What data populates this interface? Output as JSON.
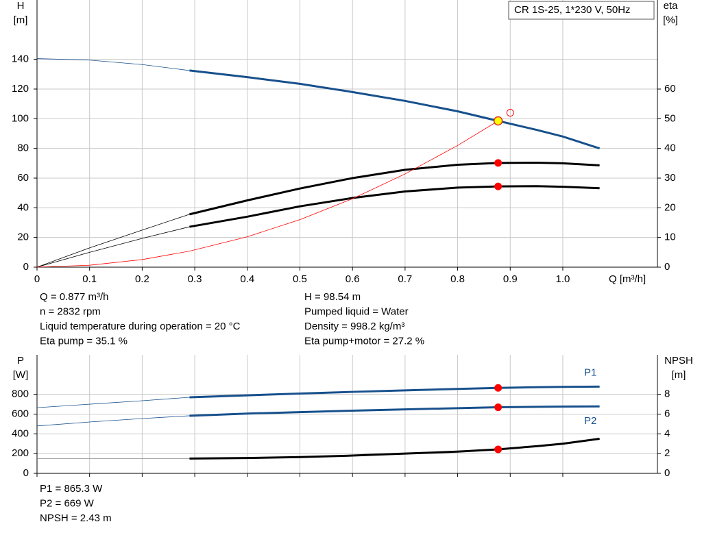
{
  "chart_data": [
    {
      "type": "line",
      "legend_box": "CR 1S-25, 1*230 V, 50Hz",
      "y_label": [
        "H",
        "[m]"
      ],
      "y2_label": [
        "eta",
        "[%]"
      ],
      "x_label": "Q [m³/h]",
      "x": [
        0,
        0.1,
        0.2,
        0.29,
        0.4,
        0.5,
        0.6,
        0.7,
        0.8,
        0.877,
        0.95,
        1.0,
        1.07
      ],
      "xlim": [
        0,
        1.18
      ],
      "xticks": [
        0,
        0.1,
        0.2,
        0.3,
        0.4,
        0.5,
        0.6,
        0.7,
        0.8,
        0.9,
        {
          "value": 1,
          "label": "1.0"
        }
      ],
      "ylim": [
        0,
        180
      ],
      "yticks": [
        0,
        20,
        40,
        60,
        80,
        100,
        120,
        140
      ],
      "y2lim": [
        0,
        90
      ],
      "y2ticks": [
        0,
        10,
        20,
        30,
        40,
        50,
        60
      ],
      "grid": true,
      "thick_from_index": 3,
      "marker_index": 9,
      "series": [
        {
          "color": "#17508c",
          "marker": "#ffff00",
          "values": [
            140.5,
            139.5,
            136.5,
            132.5,
            128,
            123.5,
            118,
            112,
            105,
            98.54,
            92.5,
            88,
            80
          ]
        },
        {
          "color": "#000000",
          "marker": "#ff0000",
          "axis": "y2",
          "values": [
            0,
            6.5,
            12.5,
            17.8,
            22.5,
            26.5,
            30,
            32.8,
            34.5,
            35.1,
            35.2,
            35,
            34.3
          ]
        },
        {
          "color": "#000000",
          "marker": "#ff0000",
          "axis": "y2",
          "values": [
            0,
            5,
            9.7,
            13.6,
            17,
            20.5,
            23.3,
            25.5,
            26.8,
            27.2,
            27.3,
            27.1,
            26.6
          ]
        },
        {
          "color": "#ff0000",
          "thin": true,
          "values": [
            0,
            1.3,
            5.1,
            10.8,
            20.5,
            32,
            46.1,
            62.8,
            82,
            98.54,
            null,
            null,
            null
          ]
        }
      ],
      "annotation_point": {
        "x": 0.9,
        "y": 104
      },
      "info": [
        [
          "Q = 0.877 m³/h",
          "n = 2832 rpm",
          "Liquid temperature during operation = 20 °C",
          "Eta pump = 35.1 %"
        ],
        [
          "H = 98.54 m",
          "Pumped liquid = Water",
          "Density = 998.2 kg/m³",
          "Eta pump+motor = 27.2 %"
        ]
      ]
    },
    {
      "type": "line",
      "y_label": [
        "P",
        "[W]"
      ],
      "y2_label": [
        "NPSH",
        "[m]"
      ],
      "x": [
        0,
        0.1,
        0.2,
        0.29,
        0.4,
        0.5,
        0.6,
        0.7,
        0.8,
        0.877,
        0.95,
        1.0,
        1.07
      ],
      "xlim": [
        0,
        1.18
      ],
      "xticks": [
        0,
        0.1,
        0.2,
        0.3,
        0.4,
        0.5,
        0.6,
        0.7,
        0.8,
        0.9,
        1
      ],
      "ylim": [
        0,
        1200
      ],
      "yticks": [
        0,
        200,
        400,
        600,
        800
      ],
      "y2lim": [
        0,
        12
      ],
      "y2ticks": [
        0,
        2,
        4,
        6,
        8
      ],
      "grid": true,
      "thick_from_index": 3,
      "marker_index": 9,
      "series": [
        {
          "name": "P1",
          "color": "#17508c",
          "marker": "#ff0000",
          "values": [
            665,
            700,
            735,
            770,
            790,
            808,
            825,
            840,
            855,
            865.3,
            872,
            876,
            878
          ]
        },
        {
          "name": "P2",
          "color": "#17508c",
          "marker": "#ff0000",
          "values": [
            480,
            520,
            555,
            583,
            605,
            620,
            635,
            648,
            660,
            669,
            674,
            676,
            678
          ]
        },
        {
          "color": "#000000",
          "marker": "#ff0000",
          "axis": "y2",
          "values": [
            1.5,
            1.5,
            1.5,
            1.5,
            1.55,
            1.65,
            1.8,
            2.0,
            2.2,
            2.43,
            2.75,
            3.0,
            3.5
          ]
        }
      ],
      "info": [
        [
          "P1 = 865.3 W",
          "P2 = 669 W",
          "NPSH = 2.43 m"
        ]
      ]
    }
  ]
}
